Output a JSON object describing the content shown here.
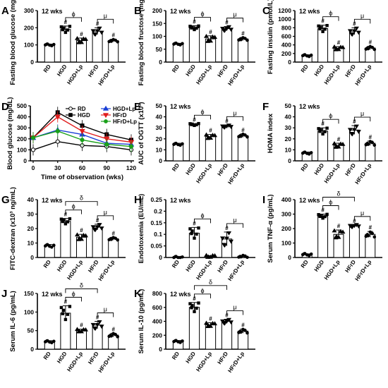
{
  "figure": {
    "groups": [
      "RD",
      "HGD",
      "HGD+Lp",
      "HFrD",
      "HFrD+Lp"
    ]
  },
  "chart_data": [
    {
      "id": "A",
      "type": "bar",
      "annotation": "12 wks",
      "ylabel": "Fasting blood glucose (mg/dL)",
      "ylim": [
        0,
        300
      ],
      "yticks": [
        0,
        100,
        200,
        300
      ],
      "categories": [
        "RD",
        "HGD",
        "HGD+Lp",
        "HFrD",
        "HFrD+Lp"
      ],
      "values": [
        100,
        190,
        125,
        180,
        125
      ],
      "errors": [
        5,
        20,
        15,
        20,
        8
      ],
      "markers": [
        "",
        "#",
        "#",
        "#",
        "#"
      ],
      "brackets": [
        {
          "from": 1,
          "to": 2,
          "label": "ϕ"
        },
        {
          "from": 3,
          "to": 4,
          "label": "μ"
        }
      ]
    },
    {
      "id": "B",
      "type": "bar",
      "annotation": "12 wks",
      "ylabel": "Fasting blood fructose (mg/dL)",
      "ylim": [
        0,
        200
      ],
      "yticks": [
        0,
        50,
        100,
        150,
        200
      ],
      "categories": [
        "RD",
        "HGD",
        "HGD+Lp",
        "HFrD",
        "HFrD+Lp"
      ],
      "values": [
        70,
        133,
        90,
        130,
        90
      ],
      "errors": [
        3,
        8,
        12,
        8,
        6
      ],
      "markers": [
        "",
        "#",
        "#",
        "#",
        "#"
      ],
      "brackets": [
        {
          "from": 1,
          "to": 2,
          "label": "ϕ"
        },
        {
          "from": 3,
          "to": 4,
          "label": "μ"
        }
      ]
    },
    {
      "id": "C",
      "type": "bar",
      "annotation": "12 wks",
      "ylabel": "Fasting insulin (pmol/L)",
      "ylim": [
        0,
        1200
      ],
      "yticks": [
        0,
        200,
        400,
        600,
        800,
        1000,
        1200
      ],
      "categories": [
        "RD",
        "HGD",
        "HGD+Lp",
        "HFrD",
        "HFrD+Lp"
      ],
      "values": [
        150,
        780,
        320,
        720,
        330
      ],
      "errors": [
        20,
        80,
        40,
        80,
        40
      ],
      "markers": [
        "",
        "#",
        "#",
        "#",
        "#"
      ],
      "brackets": [
        {
          "from": 1,
          "to": 2,
          "label": "ϕ"
        },
        {
          "from": 3,
          "to": 4,
          "label": "μ"
        }
      ]
    },
    {
      "id": "D",
      "type": "line",
      "xlabel": "Time of observation (wks)",
      "ylabel": "Blood glucose (mg/dL)",
      "ylim": [
        0,
        500
      ],
      "yticks": [
        0,
        100,
        200,
        300,
        400,
        500
      ],
      "xlim": [
        0,
        120
      ],
      "xticks": [
        0,
        30,
        60,
        90,
        120
      ],
      "legend": [
        "RD",
        "HGD",
        "HGD+Lp",
        "HFrD",
        "HFrD+Lp"
      ],
      "x": [
        0,
        30,
        60,
        90,
        120
      ],
      "series": [
        {
          "name": "RD",
          "color": "#000000",
          "marker": "circle-open",
          "values": [
            100,
            175,
            140,
            130,
            100
          ]
        },
        {
          "name": "HGD",
          "color": "#000000",
          "marker": "square",
          "values": [
            210,
            440,
            320,
            240,
            190
          ]
        },
        {
          "name": "HGD+Lp",
          "color": "#1a3fd6",
          "marker": "triangle",
          "values": [
            210,
            280,
            240,
            160,
            150
          ]
        },
        {
          "name": "HFrD",
          "color": "#e01d1d",
          "marker": "triangle-down",
          "values": [
            210,
            400,
            270,
            200,
            170
          ]
        },
        {
          "name": "HFrD+Lp",
          "color": "#1aa11a",
          "marker": "circle",
          "values": [
            210,
            270,
            190,
            150,
            130
          ]
        }
      ]
    },
    {
      "id": "E",
      "type": "bar",
      "annotation": "12 wks",
      "ylabel": "AUC of OGTT (x10³)",
      "ylim": [
        0,
        50
      ],
      "yticks": [
        0,
        10,
        20,
        30,
        40,
        50
      ],
      "categories": [
        "RD",
        "HGD",
        "HGD+Lp",
        "HFrD",
        "HFrD+Lp"
      ],
      "values": [
        15,
        33,
        22,
        31.5,
        23
      ],
      "errors": [
        1,
        0.8,
        2,
        1,
        1.5
      ],
      "markers": [
        "",
        "#",
        "#",
        "#",
        "#"
      ],
      "brackets": [
        {
          "from": 1,
          "to": 2,
          "label": "ϕ"
        },
        {
          "from": 3,
          "to": 4,
          "label": "μ"
        }
      ]
    },
    {
      "id": "F",
      "type": "bar",
      "annotation": "12 wks",
      "ylabel": "HOMA index",
      "ylim": [
        0,
        50
      ],
      "yticks": [
        0,
        10,
        20,
        30,
        40,
        50
      ],
      "categories": [
        "RD",
        "HGD",
        "HGD+Lp",
        "HFrD",
        "HFrD+Lp"
      ],
      "values": [
        7,
        27,
        14,
        28,
        16
      ],
      "errors": [
        1,
        3,
        2,
        4,
        2
      ],
      "markers": [
        "",
        "#",
        "#",
        "#",
        "#"
      ],
      "brackets": [
        {
          "from": 1,
          "to": 2,
          "label": "ϕ"
        },
        {
          "from": 3,
          "to": 4,
          "label": "μ"
        }
      ]
    },
    {
      "id": "G",
      "type": "bar",
      "annotation": "12 wks",
      "ylabel": "FITC-dextran (x10³ ng/mL)",
      "ylim": [
        0,
        40
      ],
      "yticks": [
        0,
        10,
        20,
        30,
        40
      ],
      "categories": [
        "RD",
        "HGD",
        "HGD+Lp",
        "HFrD",
        "HFrD+Lp"
      ],
      "values": [
        8,
        25,
        14,
        21,
        13
      ],
      "errors": [
        1,
        2,
        2,
        2,
        1
      ],
      "markers": [
        "",
        "#",
        "#",
        "#",
        "#"
      ],
      "brackets": [
        {
          "from": 1,
          "to": 2,
          "label": "ϕ"
        },
        {
          "from": 3,
          "to": 4,
          "label": "μ"
        },
        {
          "from": 1,
          "to": 3,
          "label": "δ"
        }
      ]
    },
    {
      "id": "H",
      "type": "bar",
      "annotation": "12 wks",
      "ylabel": "Endotoxemia (EU/mL)",
      "ylim": [
        0,
        0.25
      ],
      "yticks": [
        0,
        0.05,
        0.1,
        0.15,
        0.2,
        0.25
      ],
      "categories": [
        "RD",
        "HGD",
        "HGD+Lp",
        "HFrD",
        "HFrD+Lp"
      ],
      "values": [
        0,
        0.105,
        0.005,
        0.08,
        0.005
      ],
      "errors": [
        0,
        0.025,
        0.003,
        0.03,
        0.002
      ],
      "markers": [
        "",
        "#",
        "",
        "#",
        ""
      ],
      "brackets": [
        {
          "from": 1,
          "to": 2,
          "label": "ϕ"
        },
        {
          "from": 3,
          "to": 4,
          "label": "μ"
        }
      ]
    },
    {
      "id": "I",
      "type": "bar",
      "annotation": "12 wks",
      "ylabel": "Serum TNF-α (pg/mL)",
      "ylim": [
        0,
        400
      ],
      "yticks": [
        0,
        100,
        200,
        300,
        400
      ],
      "categories": [
        "RD",
        "HGD",
        "HGD+Lp",
        "HFrD",
        "HFrD+Lp"
      ],
      "values": [
        20,
        285,
        160,
        220,
        160
      ],
      "errors": [
        5,
        15,
        30,
        5,
        20
      ],
      "markers": [
        "",
        "#",
        "#",
        "#",
        "#"
      ],
      "brackets": [
        {
          "from": 1,
          "to": 2,
          "label": "ϕ"
        },
        {
          "from": 3,
          "to": 4,
          "label": "μ"
        },
        {
          "from": 1,
          "to": 3,
          "label": "δ"
        }
      ]
    },
    {
      "id": "J",
      "type": "bar",
      "annotation": "12 wks",
      "ylabel": "Serum IL-6 (pg/mL)",
      "ylim": [
        0,
        150
      ],
      "yticks": [
        0,
        50,
        100,
        150
      ],
      "categories": [
        "RD",
        "HGD",
        "HGD+Lp",
        "HFrD",
        "HFrD+Lp"
      ],
      "values": [
        20,
        97,
        50,
        65,
        38
      ],
      "errors": [
        3,
        20,
        4,
        10,
        5
      ],
      "markers": [
        "",
        "#",
        "#",
        "#",
        "#"
      ],
      "brackets": [
        {
          "from": 1,
          "to": 2,
          "label": "ϕ"
        },
        {
          "from": 3,
          "to": 4,
          "label": "μ"
        },
        {
          "from": 1,
          "to": 3,
          "label": "δ"
        }
      ]
    },
    {
      "id": "K",
      "type": "bar",
      "annotation": "12 wks",
      "ylabel": "Serum IL-10 (pg/mL)",
      "ylim": [
        0,
        800
      ],
      "yticks": [
        0,
        200,
        400,
        600,
        800
      ],
      "categories": [
        "RD",
        "HGD",
        "HGD+Lp",
        "HFrD",
        "HFrD+Lp"
      ],
      "values": [
        110,
        600,
        350,
        400,
        260
      ],
      "errors": [
        15,
        70,
        30,
        30,
        30
      ],
      "markers": [
        "",
        "#",
        "#",
        "#",
        "#"
      ],
      "brackets": [
        {
          "from": 1,
          "to": 2,
          "label": "ϕ"
        },
        {
          "from": 3,
          "to": 4,
          "label": "μ"
        },
        {
          "from": 1,
          "to": 3,
          "label": "δ"
        }
      ]
    }
  ]
}
